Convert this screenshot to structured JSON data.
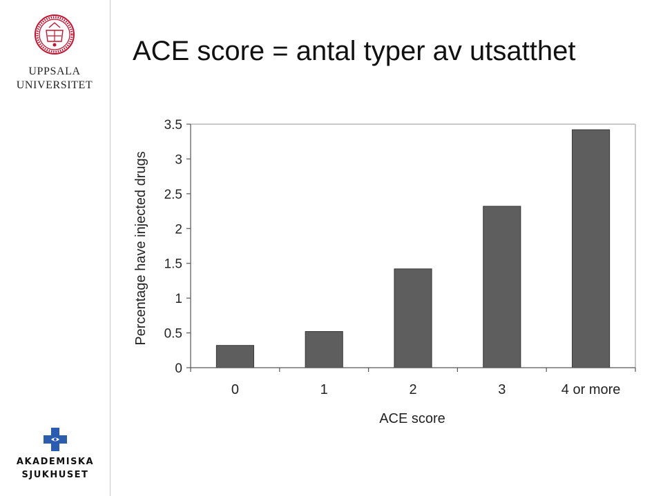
{
  "slide": {
    "title": "ACE score = antal typer av utsatthet"
  },
  "logos": {
    "university_line1": "UPPSALA",
    "university_line2": "UNIVERSITET",
    "hospital_line1": "AKADEMISKA",
    "hospital_line2": "SJUKHUSET"
  },
  "colors": {
    "bar": "#5e5e5e",
    "seal": "#c8102e",
    "hospital": "#2a5db0"
  },
  "chart_data": {
    "type": "bar",
    "categories": [
      "0",
      "1",
      "2",
      "3",
      "4 or more"
    ],
    "values": [
      0.32,
      0.52,
      1.42,
      2.32,
      3.42
    ],
    "xlabel": "ACE score",
    "ylabel": "Percentage have injected drugs",
    "ylim": [
      0,
      3.5
    ],
    "yticks": [
      0,
      0.5,
      1,
      1.5,
      2,
      2.5,
      3,
      3.5
    ],
    "ytick_labels": [
      "0",
      "0.5",
      "1",
      "1.5",
      "2",
      "2.5",
      "3",
      "3.5"
    ],
    "grid": false,
    "legend": "none"
  }
}
